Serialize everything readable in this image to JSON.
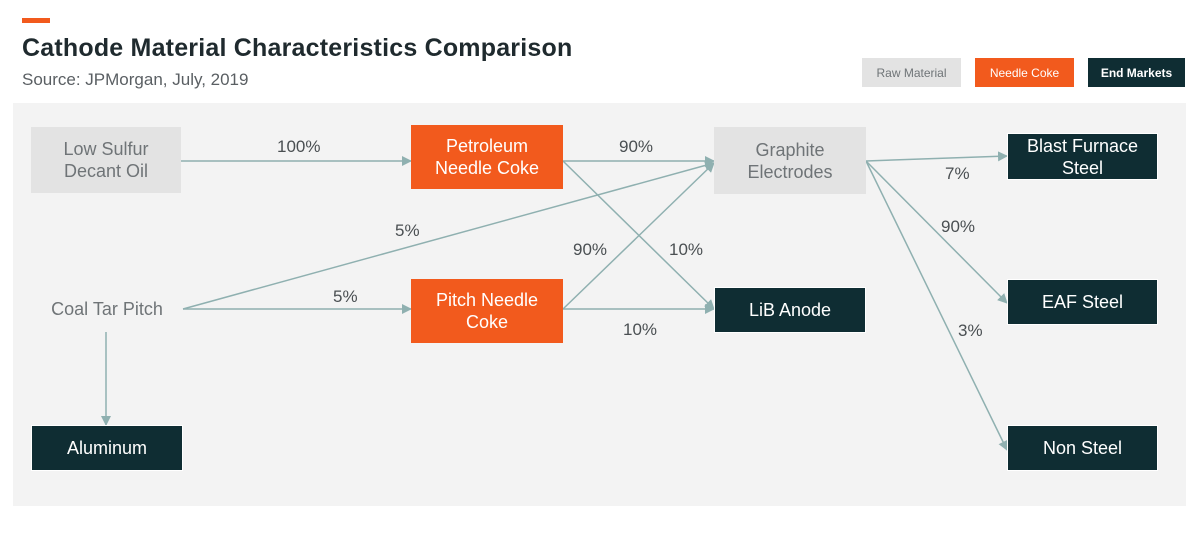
{
  "header": {
    "title": "Cathode Material Characteristics Comparison",
    "subtitle": "Source: JPMorgan, July, 2019"
  },
  "legend": [
    {
      "label": "Raw Material",
      "bg": "#e3e3e3",
      "fg": "#6f7477"
    },
    {
      "label": "Needle Coke",
      "bg": "#f25a1d",
      "fg": "#ffffff"
    },
    {
      "label": "End Markets",
      "bg": "#0f2d33",
      "fg": "#ffffff"
    }
  ],
  "nodes": {
    "low_sulfur": {
      "line1": "Low Sulfur",
      "line2": "Decant Oil"
    },
    "coal_tar": {
      "line1": "Coal Tar Pitch"
    },
    "petroleum_coke": {
      "line1": "Petroleum",
      "line2": "Needle Coke"
    },
    "pitch_coke": {
      "line1": "Pitch Needle",
      "line2": "Coke"
    },
    "graphite": {
      "line1": "Graphite",
      "line2": "Electrodes"
    },
    "lib_anode": {
      "line1": "LiB Anode"
    },
    "blast_furnace": {
      "line1": "Blast Furnace",
      "line2": "Steel"
    },
    "eaf_steel": {
      "line1": "EAF Steel"
    },
    "non_steel": {
      "line1": "Non Steel"
    },
    "aluminum": {
      "line1": "Aluminum"
    }
  },
  "flows": {
    "oil_to_petroleum": "100%",
    "coal_to_graphite": "5%",
    "coal_to_pitch": "5%",
    "petroleum_to_graphite": "90%",
    "petroleum_to_lib": "10%",
    "pitch_to_graphite": "90%",
    "pitch_to_lib": "10%",
    "graphite_to_blast": "7%",
    "graphite_to_eaf": "90%",
    "graphite_to_nonsteel": "3%"
  },
  "colors": {
    "accent": "#f25a1d",
    "edge": "#8fb0b0",
    "panel": "#f3f3f3"
  }
}
